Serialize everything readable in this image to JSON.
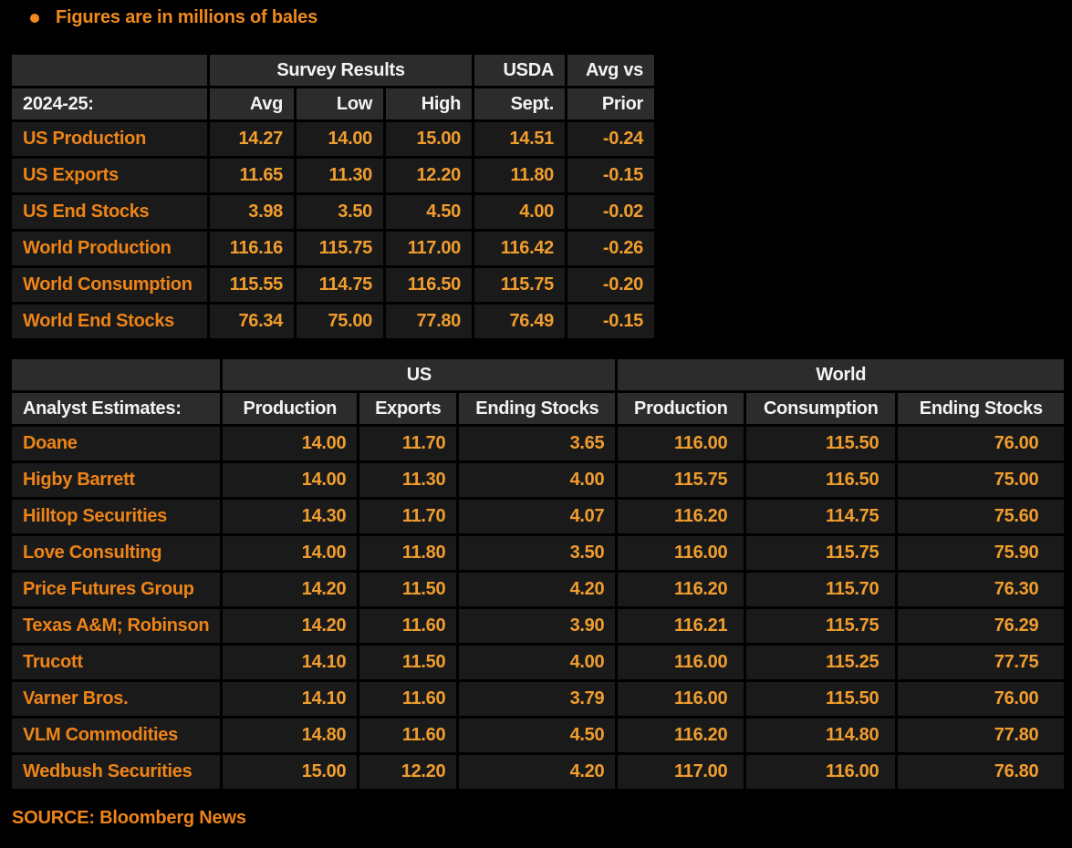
{
  "note": {
    "bullet_text": "Figures are in millions of bales"
  },
  "source": "SOURCE: Bloomberg News",
  "colors": {
    "background": "#000000",
    "header_bg": "#2c2c2c",
    "row_bg": "#1a1a1a",
    "grid": "#000000",
    "label_orange": "#ee8418",
    "value_orange": "#f09d2e",
    "header_text": "#f3f3f3"
  },
  "chart_data": [
    {
      "type": "table",
      "title": "2024-25 Survey Results vs USDA",
      "group_headers": [
        {
          "label": "",
          "span": 1
        },
        {
          "label": "Survey Results",
          "span": 3
        },
        {
          "label": "USDA",
          "span": 1
        },
        {
          "label": "Avg vs",
          "span": 1
        }
      ],
      "columns": [
        "2024-25:",
        "Avg",
        "Low",
        "High",
        "Sept.",
        "Prior"
      ],
      "rows": [
        [
          "US Production",
          "14.27",
          "14.00",
          "15.00",
          "14.51",
          "-0.24"
        ],
        [
          "US Exports",
          "11.65",
          "11.30",
          "12.20",
          "11.80",
          "-0.15"
        ],
        [
          "US End Stocks",
          "3.98",
          "3.50",
          "4.50",
          "4.00",
          "-0.02"
        ],
        [
          "World Production",
          "116.16",
          "115.75",
          "117.00",
          "116.42",
          "-0.26"
        ],
        [
          "World Consumption",
          "115.55",
          "114.75",
          "116.50",
          "115.75",
          "-0.20"
        ],
        [
          "World End Stocks",
          "76.34",
          "75.00",
          "77.80",
          "76.49",
          "-0.15"
        ]
      ]
    },
    {
      "type": "table",
      "title": "Analyst Estimates",
      "group_headers": [
        {
          "label": "",
          "span": 1
        },
        {
          "label": "US",
          "span": 3
        },
        {
          "label": "World",
          "span": 3
        }
      ],
      "columns": [
        "Analyst Estimates:",
        "Production",
        "Exports",
        "Ending Stocks",
        "Production",
        "Consumption",
        "Ending Stocks"
      ],
      "rows": [
        [
          "Doane",
          "14.00",
          "11.70",
          "3.65",
          "116.00",
          "115.50",
          "76.00"
        ],
        [
          "Higby Barrett",
          "14.00",
          "11.30",
          "4.00",
          "115.75",
          "116.50",
          "75.00"
        ],
        [
          "Hilltop Securities",
          "14.30",
          "11.70",
          "4.07",
          "116.20",
          "114.75",
          "75.60"
        ],
        [
          "Love Consulting",
          "14.00",
          "11.80",
          "3.50",
          "116.00",
          "115.75",
          "75.90"
        ],
        [
          "Price Futures Group",
          "14.20",
          "11.50",
          "4.20",
          "116.20",
          "115.70",
          "76.30"
        ],
        [
          "Texas A&M; Robinson",
          "14.20",
          "11.60",
          "3.90",
          "116.21",
          "115.75",
          "76.29"
        ],
        [
          "Trucott",
          "14.10",
          "11.50",
          "4.00",
          "116.00",
          "115.25",
          "77.75"
        ],
        [
          "Varner Bros.",
          "14.10",
          "11.60",
          "3.79",
          "116.00",
          "115.50",
          "76.00"
        ],
        [
          "VLM Commodities",
          "14.80",
          "11.60",
          "4.50",
          "116.20",
          "114.80",
          "77.80"
        ],
        [
          "Wedbush Securities",
          "15.00",
          "12.20",
          "4.20",
          "117.00",
          "116.00",
          "76.80"
        ]
      ]
    }
  ]
}
